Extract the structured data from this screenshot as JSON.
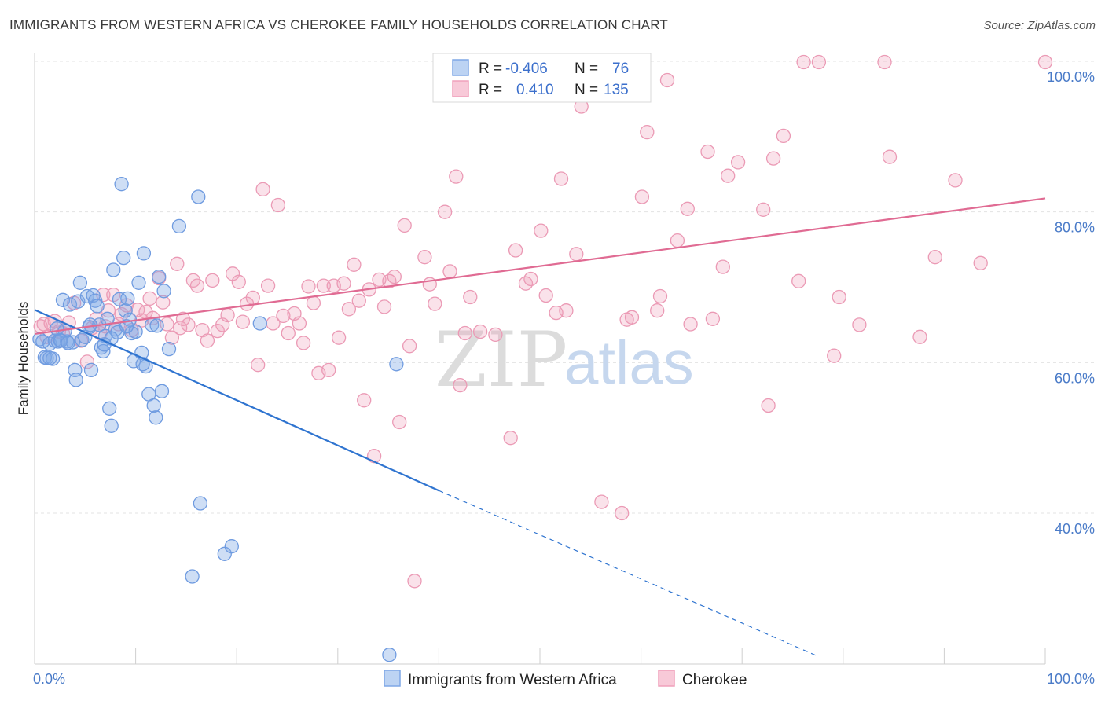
{
  "title": "IMMIGRANTS FROM WESTERN AFRICA VS CHEROKEE FAMILY HOUSEHOLDS CORRELATION CHART",
  "source": "Source: ZipAtlas.com",
  "watermark": {
    "part1": "ZIP",
    "part2": "atlas"
  },
  "legend": {
    "r_label": "R =",
    "n_label": "N =",
    "rows": [
      {
        "r": "-0.406",
        "n": "76",
        "color": "#7ea7e6"
      },
      {
        "r": "0.410",
        "n": "135",
        "color": "#f0a0bb"
      }
    ]
  },
  "bottom_legend": [
    {
      "label": "Immigrants from Western Africa",
      "color": "#7ea7e6"
    },
    {
      "label": "Cherokee",
      "color": "#f0a0bb"
    }
  ],
  "chart_data": {
    "type": "scatter",
    "title": "IMMIGRANTS FROM WESTERN AFRICA VS CHEROKEE FAMILY HOUSEHOLDS CORRELATION CHART",
    "xlabel": "",
    "ylabel": "Family Households",
    "xlim": [
      0,
      100
    ],
    "ylim": [
      20,
      101
    ],
    "x_tick_labels": [
      "0.0%",
      "100.0%"
    ],
    "y_ticks": [
      40,
      60,
      80,
      100
    ],
    "y_tick_labels": [
      "40.0%",
      "60.0%",
      "80.0%",
      "100.0%"
    ],
    "grid": true,
    "series": [
      {
        "name": "Immigrants from Western Africa",
        "color": "#7ea7e6",
        "line_color": "#2f74d0",
        "r": -0.406,
        "n": 76,
        "trend": {
          "x0": 0,
          "y0": 67,
          "x1": 40,
          "y1": 43,
          "dash_to_x": 77.5,
          "dash_to_y": 21
        },
        "points": [
          [
            0.5,
            63.1
          ],
          [
            0.8,
            62.8
          ],
          [
            1.0,
            60.7
          ],
          [
            1.2,
            60.6
          ],
          [
            1.5,
            62.5
          ],
          [
            1.8,
            60.5
          ],
          [
            2.0,
            62.9
          ],
          [
            2.3,
            62.8
          ],
          [
            2.5,
            63.0
          ],
          [
            2.8,
            68.3
          ],
          [
            3.0,
            64.2
          ],
          [
            3.2,
            62.8
          ],
          [
            3.5,
            67.7
          ],
          [
            3.8,
            62.7
          ],
          [
            4.0,
            59.0
          ],
          [
            4.1,
            57.7
          ],
          [
            4.3,
            68.1
          ],
          [
            4.5,
            70.6
          ],
          [
            4.7,
            63.0
          ],
          [
            5.0,
            63.4
          ],
          [
            5.2,
            68.8
          ],
          [
            5.4,
            64.7
          ],
          [
            5.6,
            59.0
          ],
          [
            5.8,
            68.9
          ],
          [
            6.0,
            68.2
          ],
          [
            6.2,
            67.5
          ],
          [
            6.4,
            65.0
          ],
          [
            6.6,
            62.0
          ],
          [
            6.8,
            61.5
          ],
          [
            7.0,
            63.5
          ],
          [
            7.2,
            65.8
          ],
          [
            7.4,
            53.9
          ],
          [
            7.6,
            51.6
          ],
          [
            7.8,
            72.3
          ],
          [
            8.0,
            64.4
          ],
          [
            8.2,
            64.0
          ],
          [
            8.4,
            68.4
          ],
          [
            8.6,
            83.7
          ],
          [
            8.8,
            73.9
          ],
          [
            9.0,
            66.9
          ],
          [
            9.2,
            68.5
          ],
          [
            9.4,
            65.7
          ],
          [
            9.6,
            63.9
          ],
          [
            9.8,
            60.2
          ],
          [
            10.0,
            64.1
          ],
          [
            10.3,
            70.6
          ],
          [
            10.6,
            61.3
          ],
          [
            10.8,
            74.5
          ],
          [
            11.0,
            59.5
          ],
          [
            11.3,
            55.8
          ],
          [
            11.6,
            65.0
          ],
          [
            11.8,
            54.3
          ],
          [
            12.0,
            52.7
          ],
          [
            12.3,
            71.4
          ],
          [
            12.6,
            56.2
          ],
          [
            12.8,
            69.5
          ],
          [
            13.3,
            61.8
          ],
          [
            14.3,
            78.1
          ],
          [
            16.2,
            82.0
          ],
          [
            16.4,
            41.3
          ],
          [
            15.6,
            31.6
          ],
          [
            18.8,
            34.6
          ],
          [
            19.5,
            35.6
          ],
          [
            22.3,
            65.2
          ],
          [
            35.1,
            21.2
          ],
          [
            35.8,
            59.8
          ],
          [
            1.5,
            60.6
          ],
          [
            2.2,
            64.5
          ],
          [
            2.6,
            62.9
          ],
          [
            3.3,
            62.6
          ],
          [
            5.5,
            65.0
          ],
          [
            7.6,
            63.2
          ],
          [
            9.1,
            64.8
          ],
          [
            10.7,
            59.8
          ],
          [
            12.1,
            64.9
          ],
          [
            6.9,
            62.4
          ]
        ]
      },
      {
        "name": "Cherokee",
        "color": "#f0a0bb",
        "line_color": "#e06b93",
        "r": 0.41,
        "n": 135,
        "trend": {
          "x0": 0,
          "y0": 63.8,
          "x1": 100,
          "y1": 81.8
        },
        "points": [
          [
            0.6,
            64.8
          ],
          [
            0.9,
            65.1
          ],
          [
            1.2,
            63.4
          ],
          [
            1.6,
            65.2
          ],
          [
            2.0,
            65.5
          ],
          [
            2.4,
            64.1
          ],
          [
            2.8,
            63.9
          ],
          [
            3.4,
            65.3
          ],
          [
            3.9,
            67.9
          ],
          [
            4.6,
            62.9
          ],
          [
            5.2,
            60.1
          ],
          [
            5.7,
            64.6
          ],
          [
            6.1,
            65.8
          ],
          [
            6.5,
            63.9
          ],
          [
            6.8,
            69.0
          ],
          [
            7.0,
            64.8
          ],
          [
            7.3,
            66.9
          ],
          [
            7.8,
            69.0
          ],
          [
            8.3,
            65.1
          ],
          [
            8.6,
            66.4
          ],
          [
            9.1,
            67.6
          ],
          [
            9.6,
            64.3
          ],
          [
            10.2,
            67.0
          ],
          [
            10.6,
            65.6
          ],
          [
            11.0,
            66.7
          ],
          [
            11.4,
            68.5
          ],
          [
            11.7,
            65.9
          ],
          [
            12.3,
            71.2
          ],
          [
            12.7,
            68.0
          ],
          [
            13.1,
            65.1
          ],
          [
            13.6,
            63.3
          ],
          [
            14.1,
            73.1
          ],
          [
            14.4,
            64.6
          ],
          [
            14.7,
            65.8
          ],
          [
            15.2,
            65.0
          ],
          [
            15.7,
            70.9
          ],
          [
            16.1,
            70.2
          ],
          [
            16.6,
            64.3
          ],
          [
            17.1,
            62.9
          ],
          [
            17.6,
            70.9
          ],
          [
            18.1,
            64.2
          ],
          [
            18.6,
            65.0
          ],
          [
            19.1,
            66.3
          ],
          [
            19.6,
            71.8
          ],
          [
            20.2,
            70.7
          ],
          [
            20.6,
            65.4
          ],
          [
            21.0,
            67.8
          ],
          [
            21.6,
            68.6
          ],
          [
            22.1,
            59.7
          ],
          [
            22.6,
            83.0
          ],
          [
            23.1,
            70.2
          ],
          [
            23.6,
            65.2
          ],
          [
            24.1,
            80.9
          ],
          [
            24.6,
            66.2
          ],
          [
            25.1,
            63.9
          ],
          [
            25.7,
            66.5
          ],
          [
            26.2,
            65.2
          ],
          [
            26.6,
            62.6
          ],
          [
            27.1,
            70.1
          ],
          [
            27.6,
            67.9
          ],
          [
            28.1,
            58.6
          ],
          [
            28.6,
            70.2
          ],
          [
            29.1,
            59.0
          ],
          [
            29.6,
            70.2
          ],
          [
            30.1,
            63.3
          ],
          [
            30.6,
            70.5
          ],
          [
            31.1,
            67.1
          ],
          [
            31.6,
            73.0
          ],
          [
            32.1,
            68.2
          ],
          [
            32.6,
            55.0
          ],
          [
            33.1,
            69.7
          ],
          [
            33.6,
            47.6
          ],
          [
            34.1,
            71.0
          ],
          [
            34.6,
            67.4
          ],
          [
            35.1,
            70.8
          ],
          [
            35.6,
            71.4
          ],
          [
            36.1,
            52.1
          ],
          [
            36.6,
            78.2
          ],
          [
            37.1,
            62.2
          ],
          [
            37.6,
            31.0
          ],
          [
            38.6,
            74.0
          ],
          [
            39.1,
            70.4
          ],
          [
            39.6,
            67.8
          ],
          [
            40.6,
            80.0
          ],
          [
            41.1,
            72.1
          ],
          [
            41.7,
            84.7
          ],
          [
            42.1,
            57.0
          ],
          [
            42.6,
            63.9
          ],
          [
            43.1,
            68.7
          ],
          [
            44.1,
            64.1
          ],
          [
            45.6,
            63.7
          ],
          [
            47.1,
            50.0
          ],
          [
            47.6,
            74.9
          ],
          [
            48.6,
            70.5
          ],
          [
            49.1,
            71.1
          ],
          [
            50.1,
            77.5
          ],
          [
            50.6,
            68.9
          ],
          [
            51.6,
            66.6
          ],
          [
            52.1,
            84.4
          ],
          [
            52.6,
            66.9
          ],
          [
            53.6,
            74.4
          ],
          [
            54.1,
            94.0
          ],
          [
            54.6,
            99.9
          ],
          [
            56.1,
            41.5
          ],
          [
            58.1,
            40.0
          ],
          [
            58.6,
            65.7
          ],
          [
            59.1,
            66.0
          ],
          [
            60.1,
            82.0
          ],
          [
            60.6,
            90.6
          ],
          [
            61.6,
            66.9
          ],
          [
            61.9,
            68.8
          ],
          [
            62.6,
            97.5
          ],
          [
            63.6,
            76.2
          ],
          [
            64.6,
            80.4
          ],
          [
            64.9,
            65.1
          ],
          [
            66.6,
            88.0
          ],
          [
            67.1,
            65.8
          ],
          [
            68.1,
            72.7
          ],
          [
            68.6,
            84.8
          ],
          [
            69.6,
            86.6
          ],
          [
            72.1,
            80.3
          ],
          [
            72.6,
            54.3
          ],
          [
            73.1,
            87.1
          ],
          [
            74.1,
            90.1
          ],
          [
            75.6,
            70.8
          ],
          [
            76.1,
            99.9
          ],
          [
            77.6,
            99.9
          ],
          [
            79.1,
            60.9
          ],
          [
            79.6,
            68.7
          ],
          [
            81.6,
            65.0
          ],
          [
            84.1,
            99.9
          ],
          [
            84.6,
            87.3
          ],
          [
            87.6,
            63.4
          ],
          [
            89.1,
            74.0
          ],
          [
            91.1,
            84.2
          ],
          [
            93.6,
            73.2
          ],
          [
            100.0,
            99.9
          ]
        ]
      }
    ]
  }
}
